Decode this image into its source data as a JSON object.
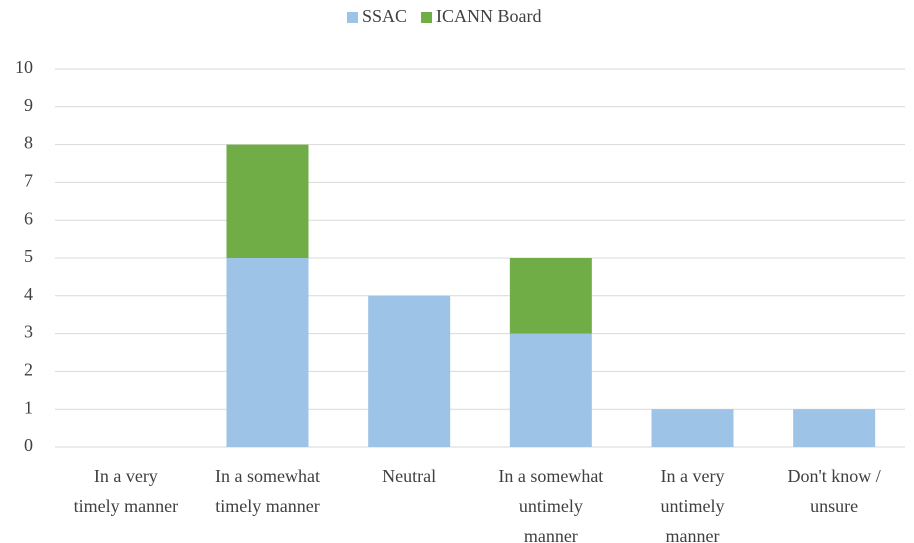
{
  "chart_data": {
    "type": "stacked_bar",
    "categories": [
      "In a very\ntimely manner",
      "In a somewhat\ntimely manner",
      "Neutral",
      "In a somewhat\nuntimely\nmanner",
      "In a very\nuntimely\nmanner",
      "Don't know /\nunsure"
    ],
    "series": [
      {
        "name": "SSAC",
        "color": "#9dc3e6",
        "values": [
          0,
          5,
          4,
          3,
          1,
          1
        ]
      },
      {
        "name": "ICANN Board",
        "color": "#70ad47",
        "values": [
          0,
          3,
          0,
          2,
          0,
          0
        ]
      }
    ],
    "ylim": [
      0,
      10
    ],
    "yticks": [
      0,
      1,
      2,
      3,
      4,
      5,
      6,
      7,
      8,
      9,
      10
    ],
    "grid": true,
    "legend": "top"
  }
}
